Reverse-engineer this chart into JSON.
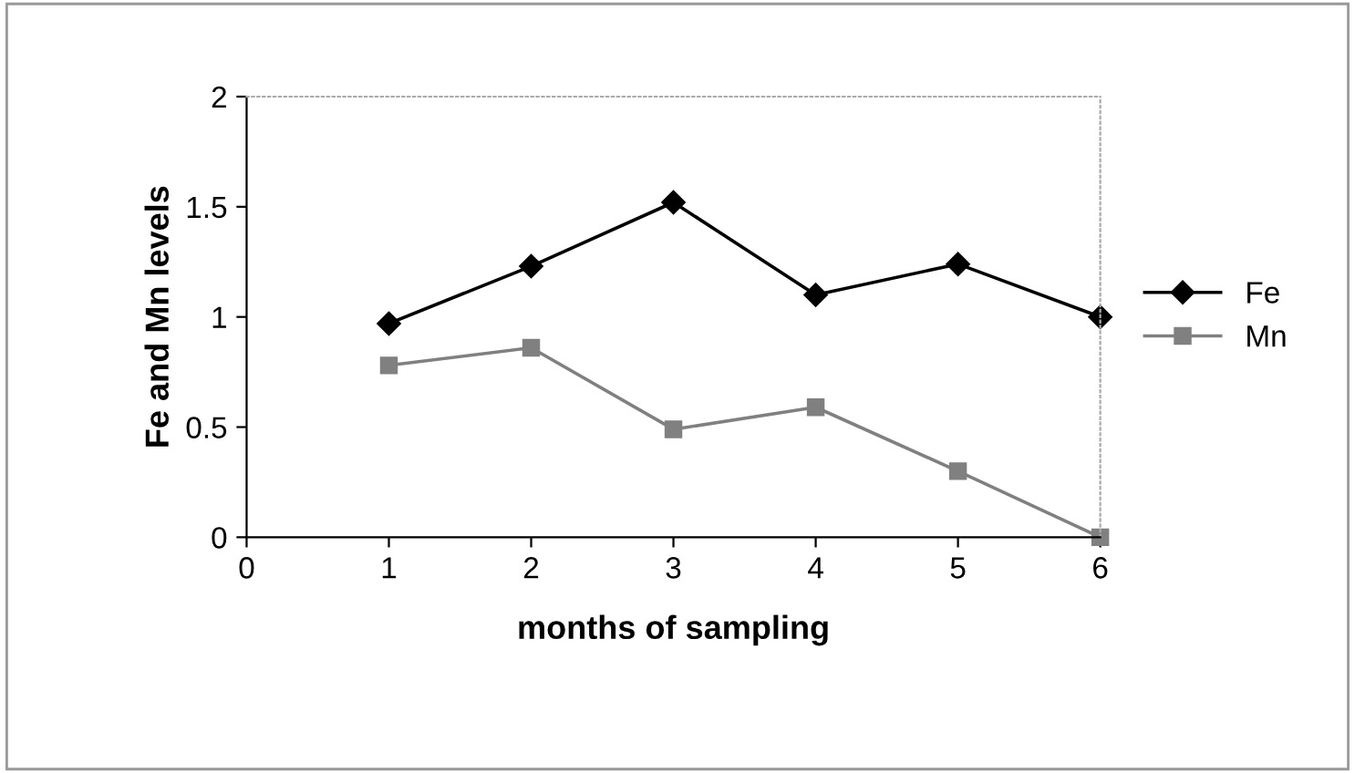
{
  "chart_data": {
    "type": "line",
    "xlabel": "months of sampling",
    "ylabel": "Fe and Mn levels",
    "x": [
      1,
      2,
      3,
      4,
      5,
      6
    ],
    "series": [
      {
        "name": "Fe",
        "color": "#000000",
        "marker": "diamond",
        "values": [
          0.97,
          1.23,
          1.52,
          1.1,
          1.24,
          1.0
        ]
      },
      {
        "name": "Mn",
        "color": "#808080",
        "marker": "square",
        "values": [
          0.78,
          0.86,
          0.49,
          0.59,
          0.3,
          0.0
        ]
      }
    ],
    "xlim": [
      0,
      6
    ],
    "xticks": [
      0,
      1,
      2,
      3,
      4,
      5,
      6
    ],
    "ylim": [
      0,
      2
    ],
    "yticks": [
      0,
      0.5,
      1,
      1.5,
      2
    ],
    "grid": false,
    "legend": "right",
    "line_style": "solid"
  }
}
